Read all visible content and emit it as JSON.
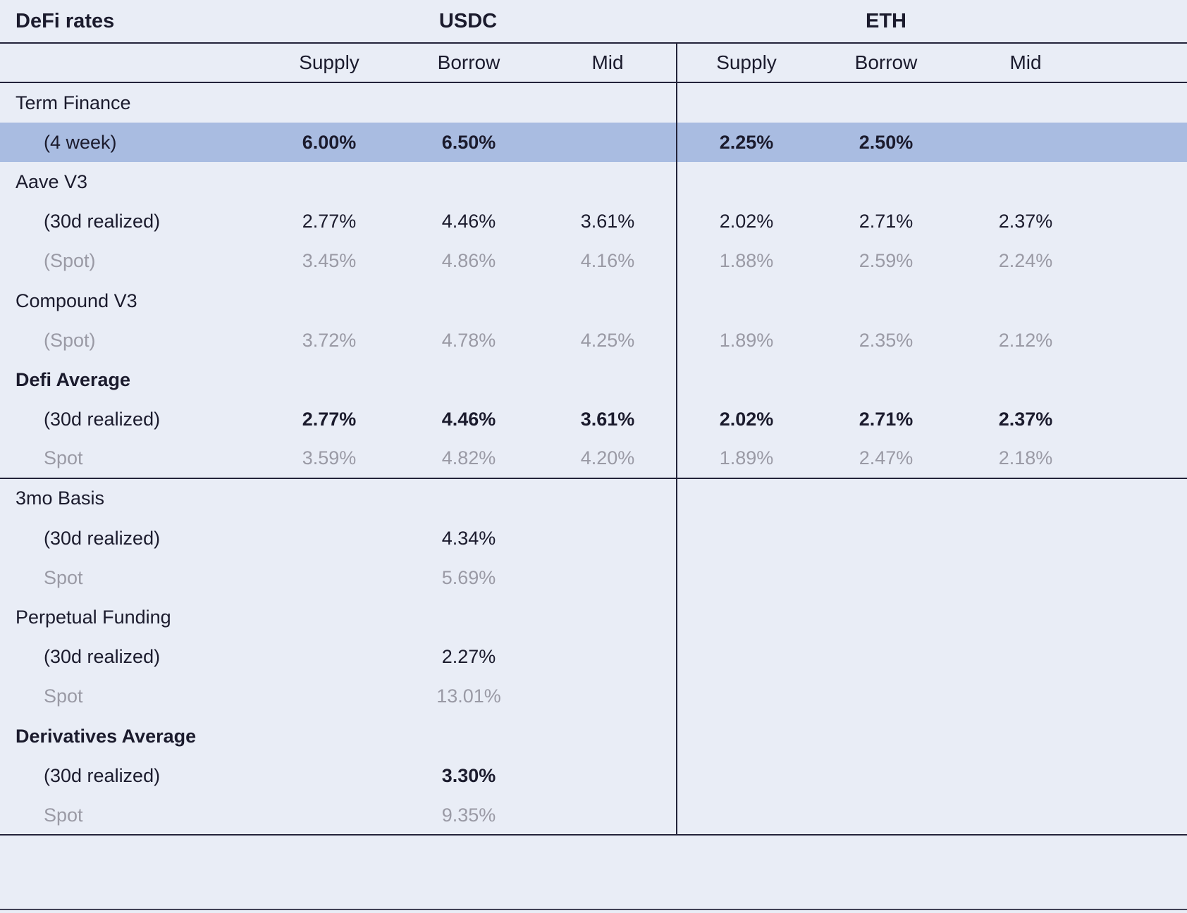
{
  "ui": {
    "colors": {
      "background": "#e9edf6",
      "highlight_row": "#a9bce1",
      "text_dark": "#1b1b2d",
      "text_gray": "#9a9aa5",
      "line": "#23233a"
    }
  },
  "chart_data": {
    "type": "table",
    "title": "DeFi rates",
    "column_groups": [
      "USDC",
      "ETH"
    ],
    "columns": [
      "Supply",
      "Borrow",
      "Mid"
    ],
    "legend_position": "none",
    "grid": "section dividers only",
    "rows": [
      {
        "label": "Term Finance",
        "style": "section",
        "indent": false,
        "usdc": [
          "",
          "",
          ""
        ],
        "eth": [
          "",
          "",
          ""
        ]
      },
      {
        "label": "(4 week)",
        "style": "highlight",
        "indent": true,
        "usdc": [
          "6.00%",
          "6.50%",
          ""
        ],
        "eth": [
          "2.25%",
          "2.50%",
          ""
        ]
      },
      {
        "label": "Aave V3",
        "style": "section",
        "indent": false,
        "usdc": [
          "",
          "",
          ""
        ],
        "eth": [
          "",
          "",
          ""
        ]
      },
      {
        "label": "(30d realized)",
        "style": "data",
        "indent": true,
        "usdc": [
          "2.77%",
          "4.46%",
          "3.61%"
        ],
        "eth": [
          "2.02%",
          "2.71%",
          "2.37%"
        ]
      },
      {
        "label": "(Spot)",
        "style": "spot",
        "indent": true,
        "usdc": [
          "3.45%",
          "4.86%",
          "4.16%"
        ],
        "eth": [
          "1.88%",
          "2.59%",
          "2.24%"
        ]
      },
      {
        "label": "Compound V3",
        "style": "section",
        "indent": false,
        "usdc": [
          "",
          "",
          ""
        ],
        "eth": [
          "",
          "",
          ""
        ]
      },
      {
        "label": "(Spot)",
        "style": "spot",
        "indent": true,
        "usdc": [
          "3.72%",
          "4.78%",
          "4.25%"
        ],
        "eth": [
          "1.89%",
          "2.35%",
          "2.12%"
        ]
      },
      {
        "label": "Defi Average",
        "style": "section-bold",
        "indent": false,
        "usdc": [
          "",
          "",
          ""
        ],
        "eth": [
          "",
          "",
          ""
        ]
      },
      {
        "label": "(30d realized)",
        "style": "data-bold",
        "indent": true,
        "usdc": [
          "2.77%",
          "4.46%",
          "3.61%"
        ],
        "eth": [
          "2.02%",
          "2.71%",
          "2.37%"
        ]
      },
      {
        "label": "Spot",
        "style": "spot",
        "indent": true,
        "usdc": [
          "3.59%",
          "4.82%",
          "4.20%"
        ],
        "eth": [
          "1.89%",
          "2.47%",
          "2.18%"
        ],
        "divider_after": true
      },
      {
        "label": "3mo Basis",
        "style": "section",
        "indent": false,
        "usdc": [
          "",
          "",
          ""
        ],
        "eth": [
          "",
          "",
          ""
        ]
      },
      {
        "label": "(30d realized)",
        "style": "data",
        "indent": true,
        "usdc": [
          "",
          "4.34%",
          ""
        ],
        "eth": [
          "",
          "",
          ""
        ]
      },
      {
        "label": "Spot",
        "style": "spot",
        "indent": true,
        "usdc": [
          "",
          "5.69%",
          ""
        ],
        "eth": [
          "",
          "",
          ""
        ]
      },
      {
        "label": "Perpetual Funding",
        "style": "section",
        "indent": false,
        "usdc": [
          "",
          "",
          ""
        ],
        "eth": [
          "",
          "",
          ""
        ]
      },
      {
        "label": "(30d realized)",
        "style": "data",
        "indent": true,
        "usdc": [
          "",
          "2.27%",
          ""
        ],
        "eth": [
          "",
          "",
          ""
        ]
      },
      {
        "label": "Spot",
        "style": "spot",
        "indent": true,
        "usdc": [
          "",
          "13.01%",
          ""
        ],
        "eth": [
          "",
          "",
          ""
        ]
      },
      {
        "label": "Derivatives Average",
        "style": "section-bold",
        "indent": false,
        "usdc": [
          "",
          "",
          ""
        ],
        "eth": [
          "",
          "",
          ""
        ]
      },
      {
        "label": "(30d realized)",
        "style": "data-bold",
        "indent": true,
        "usdc": [
          "",
          "3.30%",
          ""
        ],
        "eth": [
          "",
          "",
          ""
        ]
      },
      {
        "label": "Spot",
        "style": "spot",
        "indent": true,
        "usdc": [
          "",
          "9.35%",
          ""
        ],
        "eth": [
          "",
          "",
          ""
        ]
      }
    ]
  }
}
